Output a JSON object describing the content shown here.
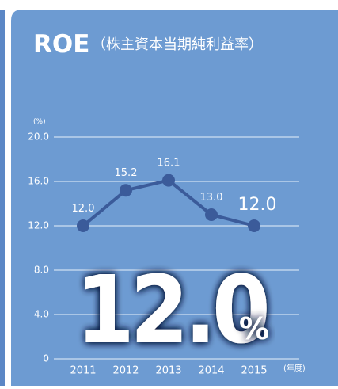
{
  "chart_data": {
    "type": "line",
    "title": "ROE",
    "subtitle": "（株主資本当期純利益率）",
    "y_label": "(%)",
    "x_label": "(年度)",
    "categories": [
      "2011",
      "2012",
      "2013",
      "2014",
      "2015"
    ],
    "series": [
      {
        "name": "ROE",
        "color": "#3b5b9a",
        "values": [
          12.0,
          15.2,
          16.1,
          13.0,
          12.0
        ],
        "value_labels": [
          "12.0",
          "15.2",
          "16.1",
          "13.0",
          "12.0"
        ]
      }
    ],
    "ylim": [
      0,
      20
    ],
    "yticks": [
      0,
      {
        "value": 4,
        "label": "4.0"
      },
      {
        "value": 8,
        "label": "8.0"
      },
      {
        "value": 12,
        "label": "12.0"
      },
      {
        "value": 16,
        "label": "16.0"
      },
      {
        "value": 20,
        "label": "20.0"
      }
    ],
    "grid": true,
    "annotation": "12.0",
    "annotation_unit": "%"
  }
}
